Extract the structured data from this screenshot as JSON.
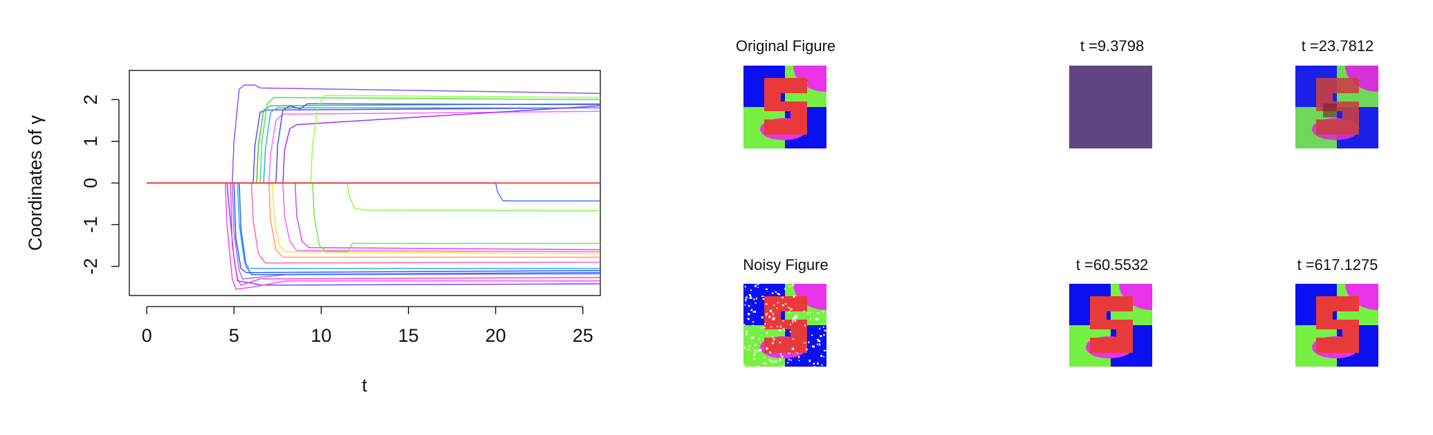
{
  "chart_data": {
    "type": "line",
    "xlabel": "t",
    "ylabel": "Coordinates of γ",
    "xlim": [
      -1,
      26
    ],
    "ylim": [
      -2.7,
      2.7
    ],
    "xticks": [
      0,
      5,
      10,
      15,
      20,
      25
    ],
    "yticks": [
      -2,
      -1,
      0,
      1,
      2
    ],
    "grid": false,
    "legend": "none",
    "series": [
      {
        "color": "#7a44ff",
        "x": [
          0,
          4.6,
          4.7,
          5.0,
          5.2,
          6.0,
          6.5,
          8.0,
          26
        ],
        "y": [
          0,
          0,
          -0.5,
          -1.8,
          -2.35,
          -2.4,
          -2.45,
          -2.45,
          -2.42
        ]
      },
      {
        "color": "#ff44ff",
        "x": [
          0,
          4.5,
          4.6,
          4.9,
          5.1,
          6.0,
          8.0,
          26
        ],
        "y": [
          0,
          0,
          -1.0,
          -2.3,
          -2.55,
          -2.5,
          -2.35,
          -2.35
        ]
      },
      {
        "color": "#ff44cc",
        "x": [
          0,
          4.8,
          4.9,
          5.2,
          5.4,
          6.5,
          26
        ],
        "y": [
          0,
          0,
          -1.5,
          -2.3,
          -2.45,
          -2.3,
          -2.27
        ]
      },
      {
        "color": "#8877ff",
        "x": [
          0,
          4.9,
          5.0,
          5.3,
          5.5,
          8.0,
          26
        ],
        "y": [
          0,
          0,
          -1.2,
          -2.1,
          -2.3,
          -2.2,
          -2.18
        ]
      },
      {
        "color": "#3355ff",
        "x": [
          0,
          5.0,
          5.1,
          5.4,
          5.7,
          26
        ],
        "y": [
          0,
          0,
          -1.3,
          -2.05,
          -2.15,
          -2.1
        ]
      },
      {
        "color": "#33aaff",
        "x": [
          0,
          5.2,
          5.3,
          5.6,
          5.9,
          26
        ],
        "y": [
          0,
          0,
          -1.0,
          -1.9,
          -2.05,
          -2.05
        ]
      },
      {
        "color": "#2266ff",
        "x": [
          0,
          5.3,
          5.4,
          5.7,
          6.0,
          26
        ],
        "y": [
          0,
          0,
          -1.1,
          -2.0,
          -2.2,
          -2.15
        ]
      },
      {
        "color": "#ff66aa",
        "x": [
          0,
          6.0,
          6.1,
          6.4,
          6.8,
          26
        ],
        "y": [
          0,
          0,
          -0.9,
          -1.7,
          -1.92,
          -1.9
        ]
      },
      {
        "color": "#ff9966",
        "x": [
          0,
          7.0,
          7.1,
          7.4,
          7.8,
          26
        ],
        "y": [
          0,
          0,
          -0.9,
          -1.6,
          -1.78,
          -1.78
        ]
      },
      {
        "color": "#ffdd44",
        "x": [
          0,
          7.2,
          7.3,
          7.6,
          8.0,
          26
        ],
        "y": [
          0,
          0,
          -0.8,
          -1.5,
          -1.65,
          -1.7
        ]
      },
      {
        "color": "#ee66ee",
        "x": [
          0,
          7.8,
          7.9,
          8.2,
          8.6,
          26
        ],
        "y": [
          0,
          0,
          -0.8,
          -1.4,
          -1.62,
          -1.65
        ]
      },
      {
        "color": "#dd44ff",
        "x": [
          0,
          8.5,
          8.6,
          8.9,
          9.3,
          26
        ],
        "y": [
          0,
          0,
          -0.8,
          -1.4,
          -1.55,
          -1.6
        ]
      },
      {
        "color": "#66ee44",
        "x": [
          0,
          9.5,
          9.6,
          9.9,
          10.3,
          11.5,
          11.8,
          26
        ],
        "y": [
          0,
          0,
          -0.8,
          -1.5,
          -1.65,
          -1.65,
          -1.45,
          -1.45
        ]
      },
      {
        "color": "#88ff44",
        "x": [
          0,
          11.5,
          11.6,
          11.9,
          12.5,
          26
        ],
        "y": [
          0,
          0,
          -0.3,
          -0.6,
          -0.65,
          -0.66
        ]
      },
      {
        "color": "#4477ff",
        "x": [
          0,
          20.0,
          20.1,
          20.4,
          20.8,
          26
        ],
        "y": [
          0,
          0,
          -0.2,
          -0.42,
          -0.43,
          -0.43
        ]
      },
      {
        "color": "#8855ff",
        "x": [
          0,
          4.9,
          5.0,
          5.3,
          5.6,
          6.2,
          6.5,
          26
        ],
        "y": [
          0,
          0,
          1.0,
          2.25,
          2.35,
          2.35,
          2.28,
          2.15
        ]
      },
      {
        "color": "#6644ee",
        "x": [
          0,
          6.1,
          6.2,
          6.5,
          6.9,
          26
        ],
        "y": [
          0,
          0,
          0.9,
          1.7,
          1.75,
          1.8
        ]
      },
      {
        "color": "#33cc44",
        "x": [
          0,
          6.3,
          6.4,
          6.7,
          7.1,
          26
        ],
        "y": [
          0,
          0,
          0.9,
          1.75,
          1.85,
          1.9
        ]
      },
      {
        "color": "#55dd55",
        "x": [
          0,
          6.5,
          6.6,
          6.9,
          7.3,
          26
        ],
        "y": [
          0,
          0,
          1.0,
          1.9,
          2.05,
          2.0
        ]
      },
      {
        "color": "#33aaff",
        "x": [
          0,
          6.7,
          6.8,
          7.1,
          7.5,
          26
        ],
        "y": [
          0,
          0,
          0.8,
          1.7,
          1.8,
          1.8
        ]
      },
      {
        "color": "#ff66ff",
        "x": [
          0,
          7.0,
          7.1,
          7.4,
          7.8,
          26
        ],
        "y": [
          0,
          0,
          0.7,
          1.5,
          1.65,
          1.72
        ]
      },
      {
        "color": "#4455ff",
        "x": [
          0,
          7.4,
          7.5,
          7.8,
          8.2,
          8.8,
          9.2,
          26
        ],
        "y": [
          0,
          0,
          0.9,
          1.75,
          1.85,
          1.78,
          1.9,
          1.88
        ]
      },
      {
        "color": "#9933ff",
        "x": [
          0,
          7.8,
          7.9,
          8.2,
          8.6,
          26
        ],
        "y": [
          0,
          0,
          0.8,
          1.3,
          1.4,
          1.85
        ]
      },
      {
        "color": "#99ff44",
        "x": [
          0,
          9.4,
          9.5,
          9.8,
          10.2,
          26
        ],
        "y": [
          0,
          0,
          0.9,
          1.8,
          2.1,
          2.05
        ]
      },
      {
        "color": "#ff3333",
        "x": [
          0,
          26
        ],
        "y": [
          0,
          0
        ]
      }
    ]
  },
  "images": {
    "original": {
      "title": "Original Figure"
    },
    "noisy": {
      "title": "Noisy Figure"
    },
    "t1": {
      "title": "t =9.3798"
    },
    "t2": {
      "title": "t =23.7812"
    },
    "t3": {
      "title": "t =60.5532"
    },
    "t4": {
      "title": "t =617.1275"
    },
    "colors": {
      "blue": "#0a10f0",
      "green": "#77f044",
      "magenta": "#e833e8",
      "red": "#e83a3a",
      "purple": "#604680"
    }
  }
}
